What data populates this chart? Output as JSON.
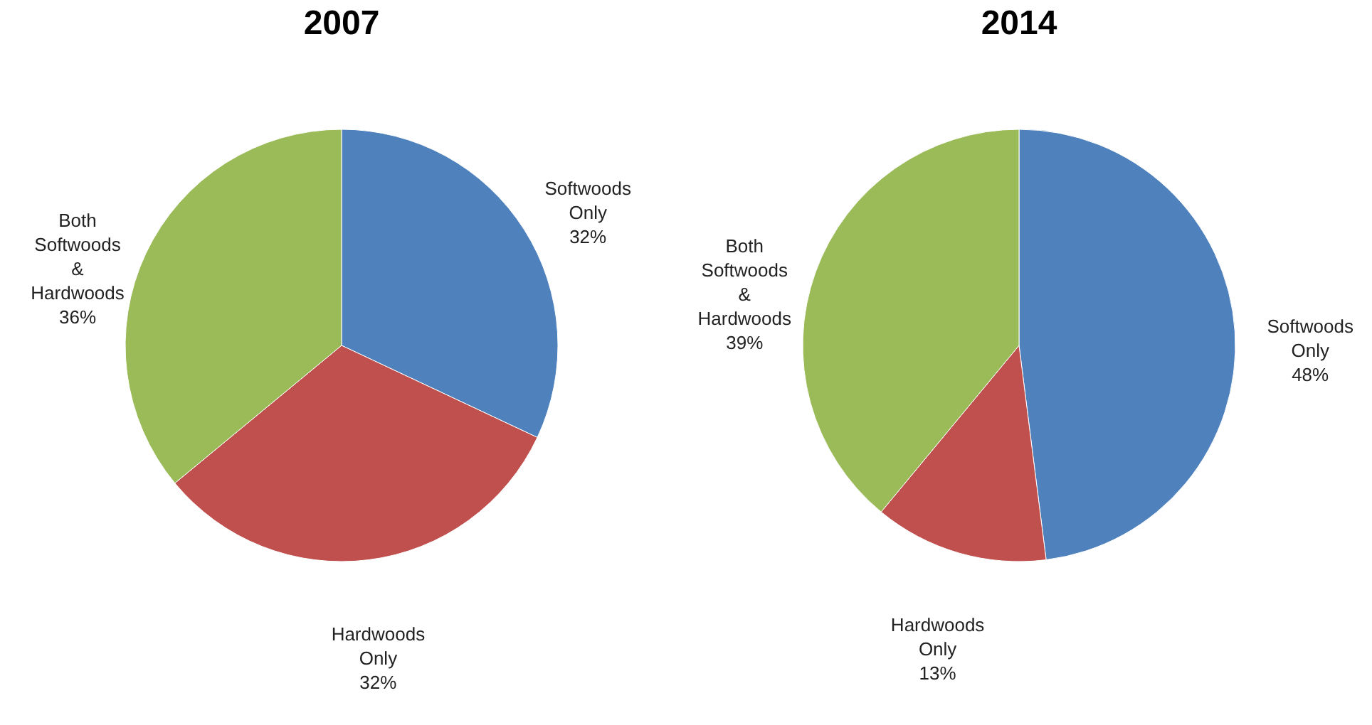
{
  "chart_data": [
    {
      "type": "pie",
      "title": "2007",
      "categories": [
        "Softwoods Only",
        "Hardwoods Only",
        "Both Softwoods & Hardwoods"
      ],
      "values": [
        32,
        32,
        36
      ],
      "colors": [
        "#4f81bd",
        "#c0504d",
        "#9bbb59"
      ],
      "value_labels": [
        "32%",
        "32%",
        "36%"
      ]
    },
    {
      "type": "pie",
      "title": "2014",
      "categories": [
        "Softwoods Only",
        "Hardwoods Only",
        "Both Softwoods & Hardwoods"
      ],
      "values": [
        48,
        13,
        39
      ],
      "colors": [
        "#4f81bd",
        "#c0504d",
        "#9bbb59"
      ],
      "value_labels": [
        "48%",
        "13%",
        "39%"
      ]
    }
  ]
}
